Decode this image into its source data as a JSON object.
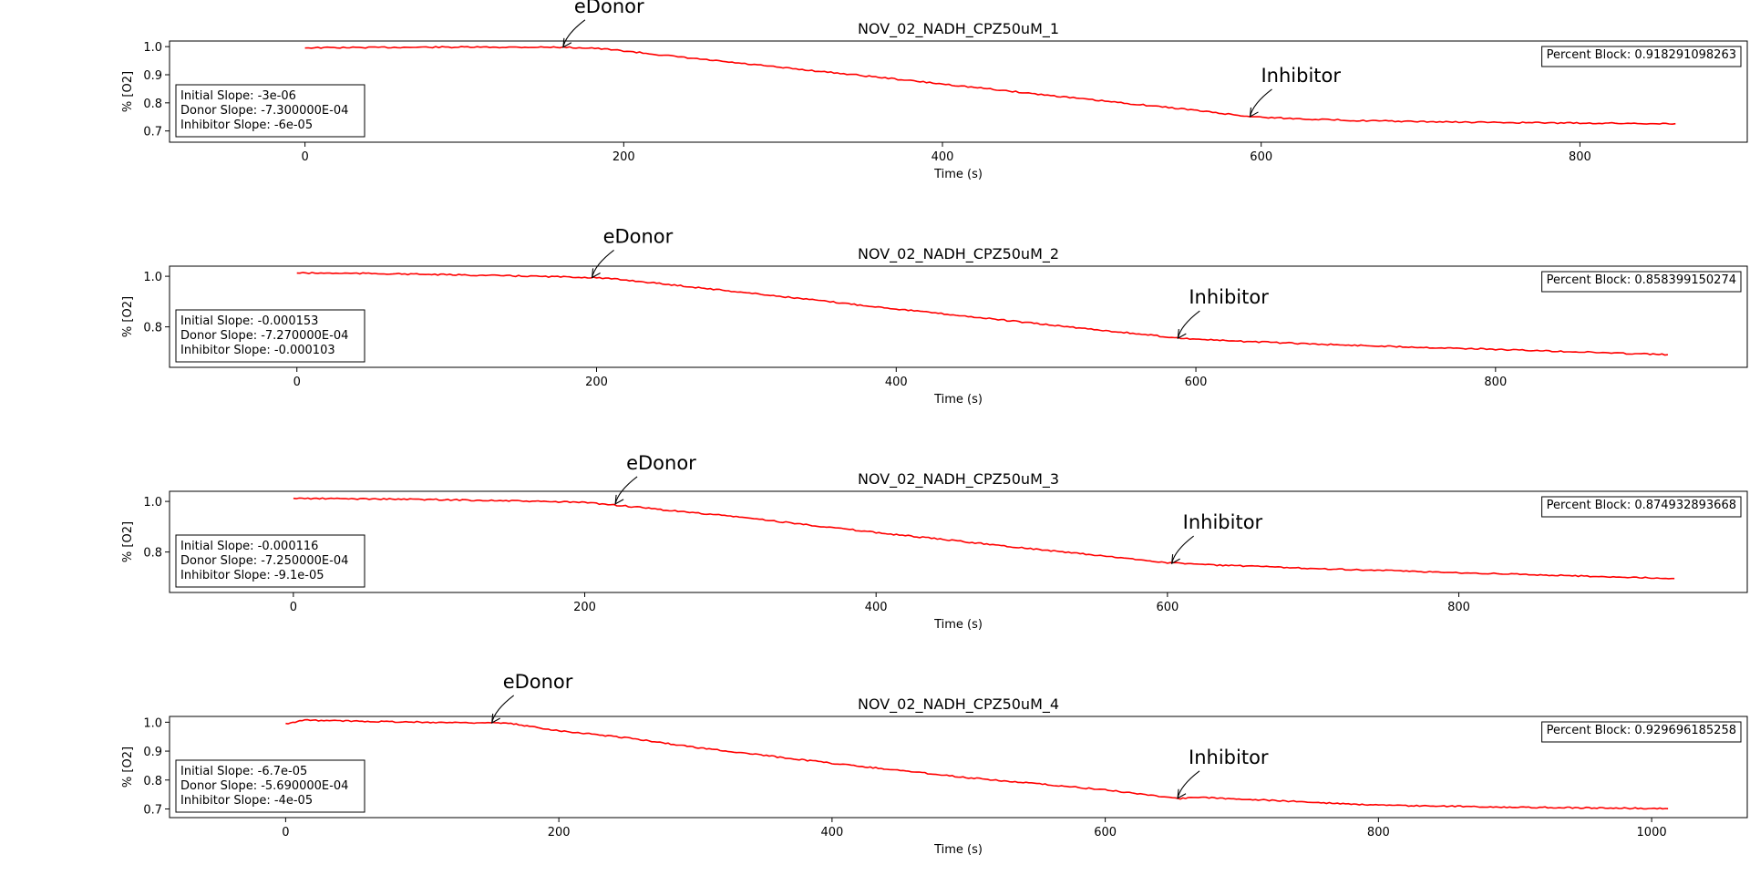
{
  "line_color": "#ff0000",
  "chart_data": [
    {
      "type": "line",
      "title": "NOV_02_NADH_CPZ50uM_1",
      "xlabel": "Time (s)",
      "ylabel": "% [O2]",
      "xlim": [
        -85,
        905
      ],
      "ylim": [
        0.66,
        1.02
      ],
      "xticks": [
        0,
        200,
        400,
        600,
        800
      ],
      "yticks": [
        0.7,
        0.8,
        0.9,
        1.0
      ],
      "x_end": 860,
      "series": [
        {
          "x": [
            0,
            40,
            80,
            120,
            160,
            180,
            200,
            240,
            300,
            350,
            400,
            450,
            500,
            550,
            593,
            620,
            660,
            700,
            750,
            800,
            860
          ],
          "values": [
            0.996,
            0.997,
            0.998,
            0.998,
            0.998,
            0.995,
            0.985,
            0.96,
            0.925,
            0.897,
            0.867,
            0.837,
            0.807,
            0.779,
            0.751,
            0.744,
            0.737,
            0.733,
            0.73,
            0.728,
            0.726
          ]
        }
      ],
      "stats": [
        "Initial Slope: -3e-06",
        "Donor Slope: -7.300000E-04",
        "Inhibitor Slope: -6e-05"
      ],
      "percent_block": "Percent Block: 0.918291098263",
      "annotations": [
        {
          "text": "eDonor",
          "x": 162,
          "y": 0.998
        },
        {
          "text": "Inhibitor",
          "x": 593,
          "y": 0.751
        }
      ]
    },
    {
      "type": "line",
      "title": "NOV_02_NADH_CPZ50uM_2",
      "xlabel": "Time (s)",
      "ylabel": "% [O2]",
      "xlim": [
        -85,
        968
      ],
      "ylim": [
        0.64,
        1.04
      ],
      "xticks": [
        0,
        200,
        400,
        600,
        800
      ],
      "yticks": [
        0.8,
        1.0
      ],
      "x_end": 915,
      "series": [
        {
          "x": [
            0,
            50,
            100,
            150,
            198,
            220,
            260,
            300,
            400,
            500,
            590,
            620,
            700,
            800,
            915
          ],
          "values": [
            1.013,
            1.011,
            1.006,
            1.001,
            0.995,
            0.985,
            0.96,
            0.935,
            0.871,
            0.809,
            0.755,
            0.745,
            0.728,
            0.711,
            0.69
          ]
        }
      ],
      "stats": [
        "Initial Slope: -0.000153",
        "Donor Slope: -7.270000E-04",
        "Inhibitor Slope: -0.000103"
      ],
      "percent_block": "Percent Block: 0.858399150274",
      "annotations": [
        {
          "text": "eDonor",
          "x": 197,
          "y": 0.995
        },
        {
          "text": "Inhibitor",
          "x": 588,
          "y": 0.755
        }
      ]
    },
    {
      "type": "line",
      "title": "NOV_02_NADH_CPZ50uM_3",
      "xlabel": "Time (s)",
      "ylabel": "% [O2]",
      "xlim": [
        -85,
        998
      ],
      "ylim": [
        0.64,
        1.04
      ],
      "xticks": [
        0,
        200,
        400,
        600,
        800
      ],
      "yticks": [
        0.8,
        1.0
      ],
      "x_end": 948,
      "series": [
        {
          "x": [
            0,
            50,
            100,
            150,
            200,
            222,
            260,
            300,
            400,
            500,
            600,
            630,
            700,
            800,
            948
          ],
          "values": [
            1.012,
            1.01,
            1.007,
            1.002,
            0.996,
            0.985,
            0.963,
            0.942,
            0.877,
            0.817,
            0.758,
            0.749,
            0.735,
            0.718,
            0.695
          ]
        }
      ],
      "stats": [
        "Initial Slope: -0.000116",
        "Donor Slope: -7.250000E-04",
        "Inhibitor Slope: -9.1e-05"
      ],
      "percent_block": "Percent Block: 0.874932893668",
      "annotations": [
        {
          "text": "eDonor",
          "x": 221,
          "y": 0.99
        },
        {
          "text": "Inhibitor",
          "x": 603,
          "y": 0.755
        }
      ]
    },
    {
      "type": "line",
      "title": "NOV_02_NADH_CPZ50uM_4",
      "xlabel": "Time (s)",
      "ylabel": "% [O2]",
      "xlim": [
        -85,
        1070
      ],
      "ylim": [
        0.67,
        1.02
      ],
      "xticks": [
        0,
        200,
        400,
        600,
        800,
        1000
      ],
      "yticks": [
        0.7,
        0.8,
        0.9,
        1.0
      ],
      "x_end": 1012,
      "series": [
        {
          "x": [
            0,
            7,
            12,
            50,
            100,
            150,
            165,
            200,
            250,
            300,
            400,
            500,
            600,
            655,
            670,
            700,
            800,
            900,
            1012
          ],
          "values": [
            0.995,
            0.999,
            1.007,
            1.004,
            1.0,
            0.998,
            0.995,
            0.971,
            0.946,
            0.913,
            0.858,
            0.808,
            0.766,
            0.736,
            0.74,
            0.734,
            0.713,
            0.706,
            0.701
          ]
        }
      ],
      "stats": [
        "Initial Slope: -6.7e-05",
        "Donor Slope: -5.690000E-04",
        "Inhibitor Slope: -4e-05"
      ],
      "percent_block": "Percent Block: 0.929696185258",
      "annotations": [
        {
          "text": "eDonor",
          "x": 151,
          "y": 0.998
        },
        {
          "text": "Inhibitor",
          "x": 653,
          "y": 0.737
        }
      ]
    }
  ]
}
